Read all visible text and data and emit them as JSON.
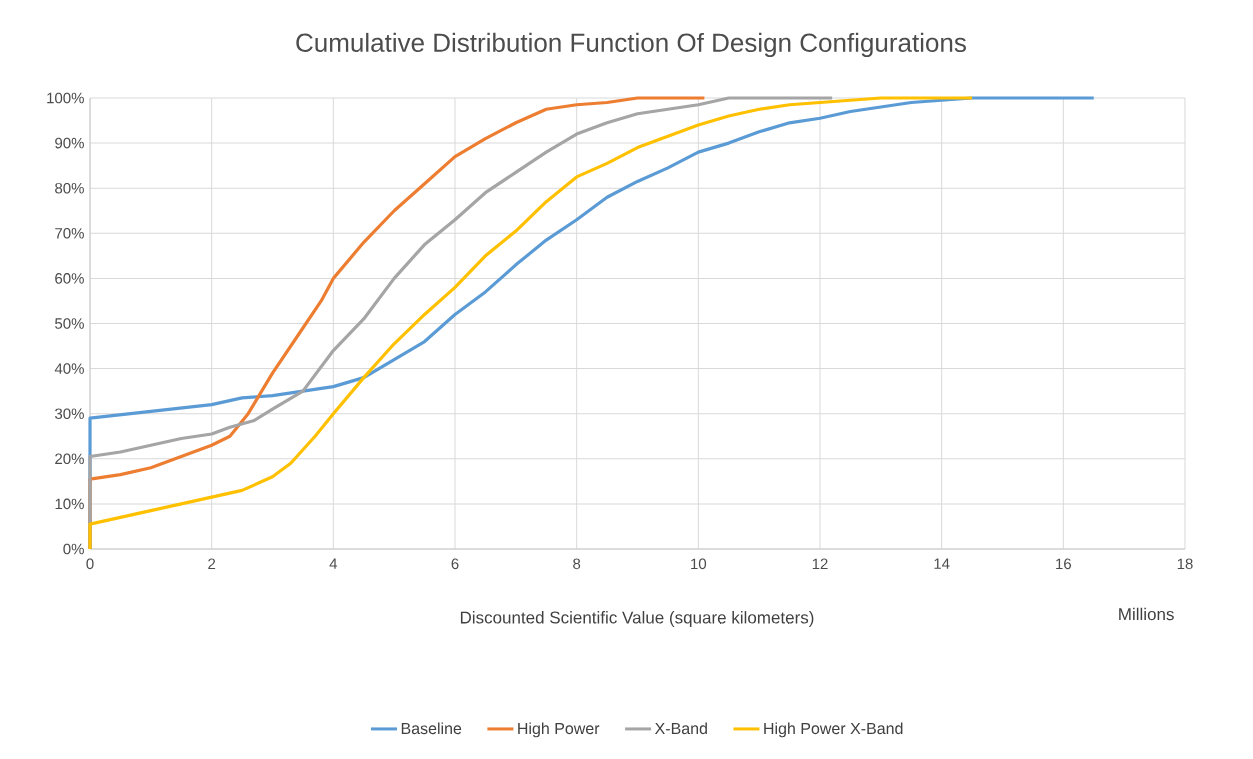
{
  "chart_data": {
    "type": "line",
    "title": "Cumulative Distribution Function Of Design Configurations",
    "xlabel": "Discounted Scientific Value (square kilometers)",
    "annotations": [
      "Millions"
    ],
    "xlim": [
      0,
      18
    ],
    "xticks": [
      0,
      2,
      4,
      6,
      8,
      10,
      12,
      14,
      16,
      18
    ],
    "ylim": [
      0,
      100
    ],
    "yticks": [
      {
        "value": 0,
        "label": "0%"
      },
      {
        "value": 10,
        "label": "10%"
      },
      {
        "value": 20,
        "label": "20%"
      },
      {
        "value": 30,
        "label": "30%"
      },
      {
        "value": 40,
        "label": "40%"
      },
      {
        "value": 50,
        "label": "50%"
      },
      {
        "value": 60,
        "label": "60%"
      },
      {
        "value": 70,
        "label": "70%"
      },
      {
        "value": 80,
        "label": "80%"
      },
      {
        "value": 90,
        "label": "90%"
      },
      {
        "value": 100,
        "label": "100%"
      }
    ],
    "grid": true,
    "legend": "bottom",
    "marker": "none",
    "line_style": "solid",
    "series": [
      {
        "name": "Baseline",
        "color": "#5b9bd5",
        "x": [
          0,
          0,
          1,
          2,
          2.5,
          3,
          3.5,
          4,
          4.5,
          5,
          5.5,
          6,
          6.5,
          7,
          7.5,
          8,
          8.5,
          9,
          9.5,
          10,
          10.5,
          11,
          11.5,
          12,
          12.5,
          13,
          13.5,
          14,
          14.5,
          16,
          16.5
        ],
        "values": [
          0,
          29,
          30.5,
          32,
          33.5,
          34,
          35,
          36,
          38,
          42,
          46,
          52,
          57,
          63,
          68.5,
          73,
          78,
          81.5,
          84.5,
          88,
          90,
          92.5,
          94.5,
          95.5,
          97,
          98,
          99,
          99.5,
          100,
          100,
          100
        ]
      },
      {
        "name": "High Power",
        "color": "#ed7d31",
        "x": [
          0,
          0,
          0.5,
          1,
          1.5,
          2,
          2.3,
          2.6,
          3,
          3.5,
          3.8,
          4,
          4.5,
          5,
          5.5,
          6,
          6.5,
          7,
          7.5,
          8,
          8.5,
          9,
          10.1
        ],
        "values": [
          0,
          15.5,
          16.5,
          18,
          20.5,
          23,
          25,
          30,
          39,
          49,
          55,
          60,
          68,
          75,
          81,
          87,
          91,
          94.5,
          97.5,
          98.5,
          99,
          100,
          100
        ]
      },
      {
        "name": "X-Band",
        "color": "#a5a5a5",
        "x": [
          0,
          0,
          0.5,
          1,
          1.5,
          2,
          2.3,
          2.7,
          3,
          3.5,
          4,
          4.5,
          5,
          5.5,
          6,
          6.5,
          7,
          7.5,
          8,
          8.5,
          9,
          9.5,
          10,
          10.5,
          12.2
        ],
        "values": [
          0,
          20.5,
          21.5,
          23,
          24.5,
          25.5,
          27,
          28.5,
          31,
          35,
          44,
          51,
          60,
          67.5,
          73,
          79,
          83.5,
          88,
          92,
          94.5,
          96.5,
          97.5,
          98.5,
          100,
          100
        ]
      },
      {
        "name": "High Power X-Band",
        "color": "#ffc000",
        "x": [
          0,
          0,
          0.5,
          1,
          1.5,
          2,
          2.5,
          3,
          3.3,
          3.7,
          4,
          4.5,
          5,
          5.5,
          6,
          6.5,
          7,
          7.5,
          8,
          8.5,
          9,
          9.5,
          10,
          10.5,
          11,
          11.5,
          12,
          12.5,
          13,
          14.5
        ],
        "values": [
          0,
          5.5,
          7,
          8.5,
          10,
          11.5,
          13,
          16,
          19,
          25,
          30,
          38,
          45.5,
          52,
          58,
          65,
          70.5,
          77,
          82.5,
          85.5,
          89,
          91.5,
          94,
          96,
          97.5,
          98.5,
          99,
          99.5,
          100,
          100
        ]
      }
    ]
  }
}
